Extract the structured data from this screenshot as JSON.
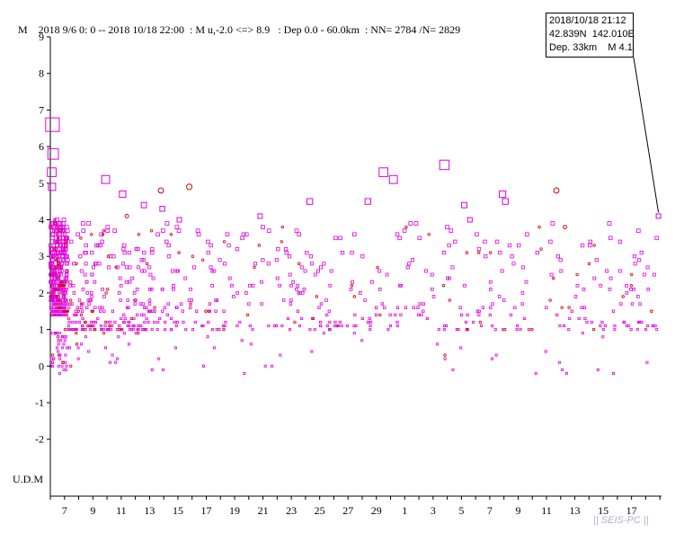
{
  "header": {
    "m_label": "M",
    "period": "2018 9/6 0: 0 -- 2018 10/18 22:00",
    "magnitude_range": ": M u,-2.0 <=> 8.9",
    "depth_range": ": Dep 0.0 - 60.0km",
    "counts": ": NN= 2784 /N= 2829"
  },
  "tooltip": {
    "datetime": "2018/10/18 21:12",
    "location": "42.839N  142.010E",
    "depth_mag": "Dep. 33km    M 4.1"
  },
  "udm_label": "U.D.M",
  "credit": "|| SEIS-PC ||",
  "colors": {
    "square": "#e000e0",
    "circle": "#d00000",
    "axis": "#000000"
  },
  "chart_data": {
    "type": "scatter",
    "title": "",
    "xlabel": "",
    "ylabel": "M",
    "ylim": [
      -2.9,
      9
    ],
    "y_ticks": [
      "9",
      "8",
      "7",
      "6",
      "5",
      "4",
      "3",
      "2",
      "1",
      "0",
      "-1",
      "-2"
    ],
    "x_ticks": [
      "7",
      "9",
      "11",
      "13",
      "15",
      "17",
      "19",
      "21",
      "23",
      "25",
      "27",
      "29",
      "1",
      "3",
      "5",
      "7",
      "9",
      "11",
      "13",
      "15",
      "17"
    ],
    "x_start": "2018-09-06 00:00",
    "x_end": "2018-10-18 22:00",
    "notable_events": [
      {
        "day": 0.15,
        "m": 6.6,
        "marker": "square"
      },
      {
        "day": 0.2,
        "m": 5.8,
        "marker": "square"
      },
      {
        "day": 0.1,
        "m": 5.3,
        "marker": "square"
      },
      {
        "day": 0.12,
        "m": 4.9,
        "marker": "square"
      },
      {
        "day": 3.9,
        "m": 5.1,
        "marker": "square"
      },
      {
        "day": 5.1,
        "m": 4.7,
        "marker": "square"
      },
      {
        "day": 7.8,
        "m": 4.8,
        "marker": "circle"
      },
      {
        "day": 9.8,
        "m": 4.9,
        "marker": "circle"
      },
      {
        "day": 5.4,
        "m": 4.1,
        "marker": "circle"
      },
      {
        "day": 6.6,
        "m": 4.4,
        "marker": "square"
      },
      {
        "day": 7.9,
        "m": 4.3,
        "marker": "square"
      },
      {
        "day": 9.1,
        "m": 4.0,
        "marker": "square"
      },
      {
        "day": 14.8,
        "m": 4.1,
        "marker": "square"
      },
      {
        "day": 18.3,
        "m": 4.5,
        "marker": "square"
      },
      {
        "day": 22.4,
        "m": 4.5,
        "marker": "square"
      },
      {
        "day": 23.5,
        "m": 5.3,
        "marker": "square"
      },
      {
        "day": 24.2,
        "m": 5.1,
        "marker": "square"
      },
      {
        "day": 27.8,
        "m": 5.5,
        "marker": "square"
      },
      {
        "day": 29.2,
        "m": 4.4,
        "marker": "square"
      },
      {
        "day": 29.6,
        "m": 4.0,
        "marker": "square"
      },
      {
        "day": 31.9,
        "m": 4.7,
        "marker": "square"
      },
      {
        "day": 32.1,
        "m": 4.5,
        "marker": "square"
      },
      {
        "day": 35.7,
        "m": 4.8,
        "marker": "circle"
      },
      {
        "day": 36.3,
        "m": 3.8,
        "marker": "circle"
      },
      {
        "day": 42.9,
        "m": 4.1,
        "marker": "square"
      }
    ],
    "background_events": {
      "count": 2784,
      "m_range": [
        -0.2,
        3.9
      ],
      "note": "dense aftershock sequence concentrated in first days"
    }
  }
}
